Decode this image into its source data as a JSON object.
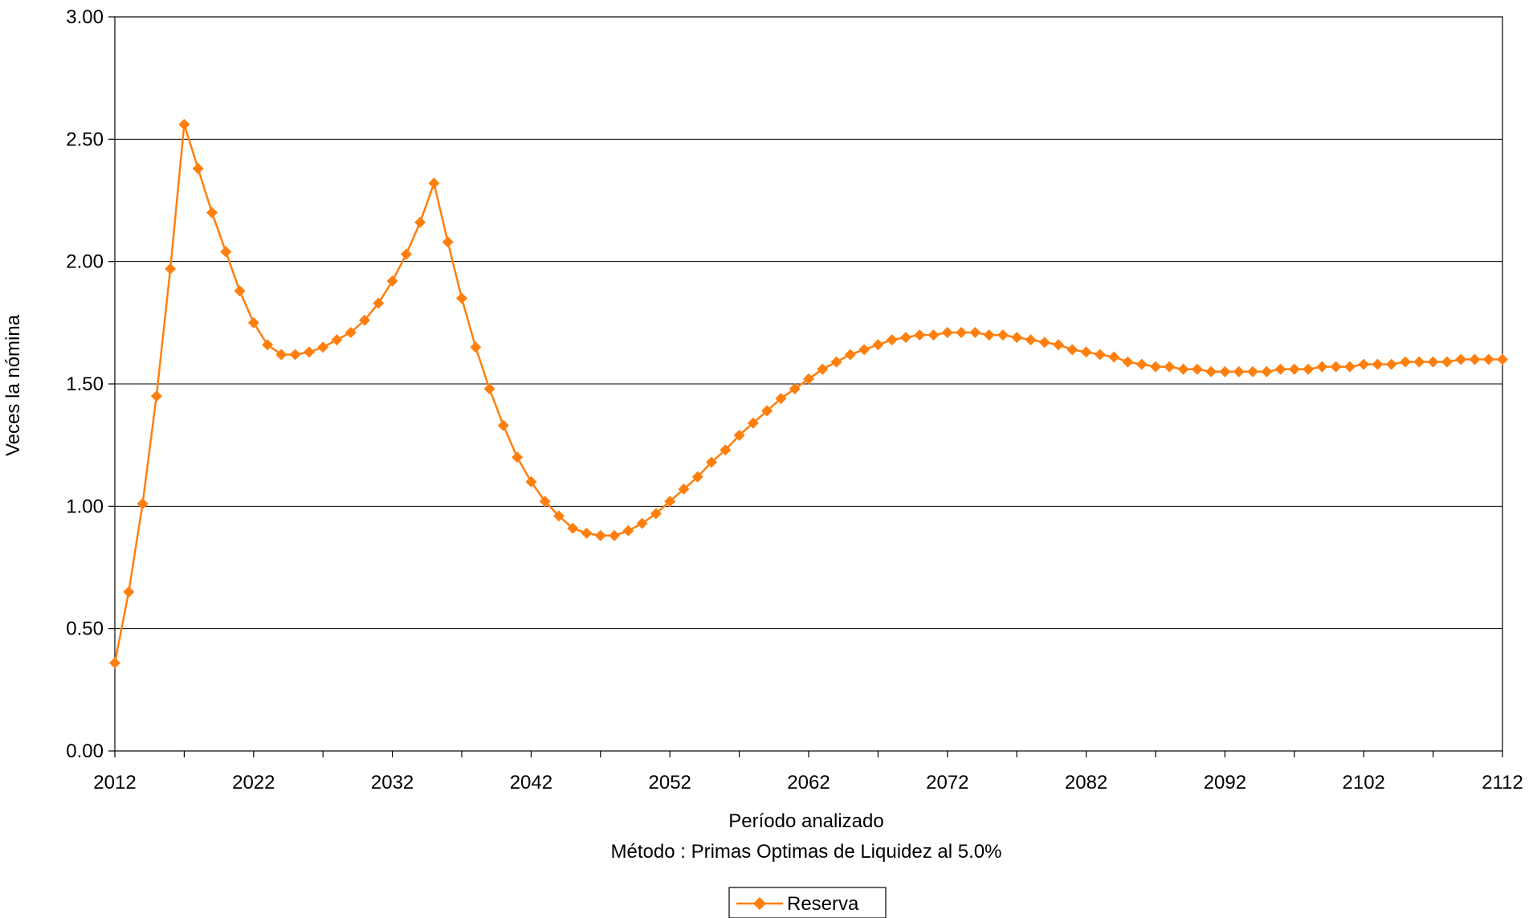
{
  "chart_data": {
    "type": "line",
    "xlabel": "Período analizado",
    "subtitle": "Método : Primas Optimas de Liquidez al 5.0%",
    "ylabel": "Veces la nómina",
    "xlim": [
      2012,
      2112
    ],
    "ylim": [
      0,
      3
    ],
    "xticks": [
      "2012",
      "2022",
      "2032",
      "2042",
      "2052",
      "2062",
      "2072",
      "2082",
      "2092",
      "2102",
      "2112"
    ],
    "yticks": [
      "0.00",
      "0.50",
      "1.00",
      "1.50",
      "2.00",
      "2.50",
      "3.00"
    ],
    "grid": "horizontal",
    "legend_position": "bottom",
    "series": [
      {
        "name": "Reserva",
        "color": "#ff7f0e",
        "marker": "diamond",
        "x": [
          2012,
          2013,
          2014,
          2015,
          2016,
          2017,
          2018,
          2019,
          2020,
          2021,
          2022,
          2023,
          2024,
          2025,
          2026,
          2027,
          2028,
          2029,
          2030,
          2031,
          2032,
          2033,
          2034,
          2035,
          2036,
          2037,
          2038,
          2039,
          2040,
          2041,
          2042,
          2043,
          2044,
          2045,
          2046,
          2047,
          2048,
          2049,
          2050,
          2051,
          2052,
          2053,
          2054,
          2055,
          2056,
          2057,
          2058,
          2059,
          2060,
          2061,
          2062,
          2063,
          2064,
          2065,
          2066,
          2067,
          2068,
          2069,
          2070,
          2071,
          2072,
          2073,
          2074,
          2075,
          2076,
          2077,
          2078,
          2079,
          2080,
          2081,
          2082,
          2083,
          2084,
          2085,
          2086,
          2087,
          2088,
          2089,
          2090,
          2091,
          2092,
          2093,
          2094,
          2095,
          2096,
          2097,
          2098,
          2099,
          2100,
          2101,
          2102,
          2103,
          2104,
          2105,
          2106,
          2107,
          2108,
          2109,
          2110,
          2111,
          2112
        ],
        "values": [
          0.36,
          0.65,
          1.01,
          1.45,
          1.97,
          2.56,
          2.38,
          2.2,
          2.04,
          1.88,
          1.75,
          1.66,
          1.62,
          1.62,
          1.63,
          1.65,
          1.68,
          1.71,
          1.76,
          1.83,
          1.92,
          2.03,
          2.16,
          2.32,
          2.08,
          1.85,
          1.65,
          1.48,
          1.33,
          1.2,
          1.1,
          1.02,
          0.96,
          0.91,
          0.89,
          0.88,
          0.88,
          0.9,
          0.93,
          0.97,
          1.02,
          1.07,
          1.12,
          1.18,
          1.23,
          1.29,
          1.34,
          1.39,
          1.44,
          1.48,
          1.52,
          1.56,
          1.59,
          1.62,
          1.64,
          1.66,
          1.68,
          1.69,
          1.7,
          1.7,
          1.71,
          1.71,
          1.71,
          1.7,
          1.7,
          1.69,
          1.68,
          1.67,
          1.66,
          1.64,
          1.63,
          1.62,
          1.61,
          1.59,
          1.58,
          1.57,
          1.57,
          1.56,
          1.56,
          1.55,
          1.55,
          1.55,
          1.55,
          1.55,
          1.56,
          1.56,
          1.56,
          1.57,
          1.57,
          1.57,
          1.58,
          1.58,
          1.58,
          1.59,
          1.59,
          1.59,
          1.59,
          1.6,
          1.6,
          1.6,
          1.6
        ]
      }
    ]
  }
}
